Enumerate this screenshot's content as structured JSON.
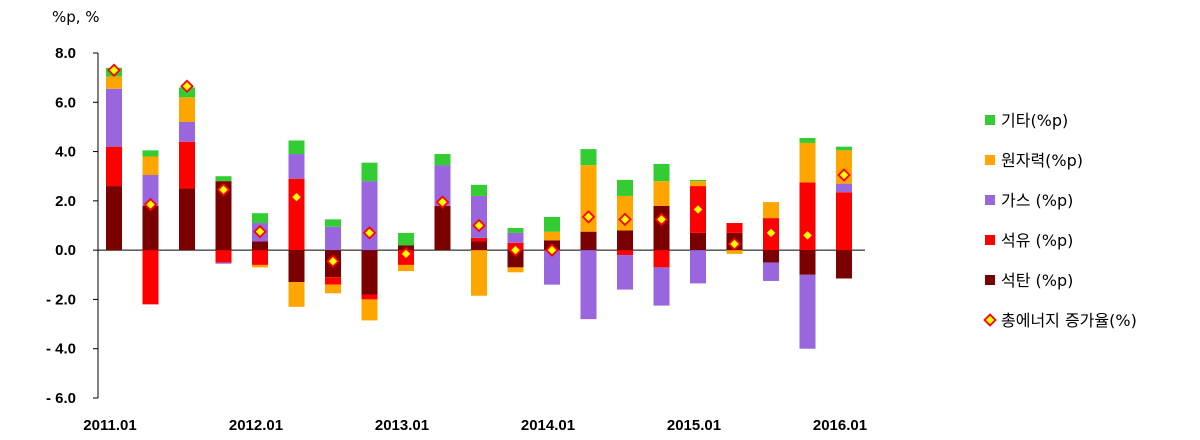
{
  "chart_data": {
    "type": "bar",
    "stacked": true,
    "unit_label": "%p, %",
    "ylim": [
      -6.0,
      8.0
    ],
    "y_ticks": [
      "8.0",
      "6.0",
      "4.0",
      "2.0",
      "0.0",
      "- 2.0",
      "- 4.0",
      "- 6.0"
    ],
    "y_tick_values": [
      8,
      6,
      4,
      2,
      0,
      -2,
      -4,
      -6
    ],
    "x_tick_labels": [
      {
        "label": "2011.01",
        "index": 0
      },
      {
        "label": "2012.01",
        "index": 4
      },
      {
        "label": "2013.01",
        "index": 8
      },
      {
        "label": "2014.01",
        "index": 12
      },
      {
        "label": "2015.01",
        "index": 16
      },
      {
        "label": "2016.01",
        "index": 20
      }
    ],
    "n_periods": 21,
    "series": [
      {
        "name": "석탄 (%p)",
        "color": "#7b0000",
        "values": [
          2.6,
          1.8,
          2.5,
          2.8,
          0.35,
          -1.3,
          -1.1,
          -1.8,
          0.2,
          1.8,
          0.35,
          -0.7,
          0.4,
          0.75,
          0.8,
          1.8,
          0.7,
          0.7,
          -0.5,
          -1.0,
          -1.15
        ]
      },
      {
        "name": "석유 (%p)",
        "color": "#ff0000",
        "values": [
          1.6,
          -2.2,
          1.9,
          -0.5,
          -0.6,
          2.9,
          -0.3,
          -0.2,
          -0.6,
          0.0,
          0.15,
          0.3,
          0.0,
          0.0,
          -0.2,
          -0.7,
          1.9,
          0.4,
          1.3,
          2.75,
          2.35
        ]
      },
      {
        "name": "가스 (%p)",
        "color": "#9966dd",
        "values": [
          2.35,
          1.25,
          0.8,
          -0.05,
          0.75,
          1.0,
          0.95,
          2.8,
          0.0,
          1.65,
          1.7,
          0.4,
          -1.4,
          -2.8,
          -1.4,
          -1.55,
          -1.35,
          0.0,
          -0.75,
          -3.0,
          0.35
        ]
      },
      {
        "name": "원자력(%p)",
        "color": "#ffa500",
        "values": [
          0.5,
          0.75,
          1.0,
          0.0,
          -0.1,
          -1.0,
          -0.35,
          -0.85,
          -0.25,
          0.0,
          -1.85,
          -0.2,
          0.35,
          2.7,
          1.4,
          1.0,
          0.2,
          -0.15,
          0.65,
          1.6,
          1.35
        ]
      },
      {
        "name": "기타(%p)",
        "color": "#33cc33",
        "values": [
          0.35,
          0.25,
          0.4,
          0.2,
          0.4,
          0.55,
          0.3,
          0.75,
          0.5,
          0.45,
          0.45,
          0.2,
          0.6,
          0.65,
          0.65,
          0.7,
          0.05,
          0.0,
          0.0,
          0.2,
          0.15
        ]
      }
    ],
    "total": {
      "name": "총에너지 증가율(%)",
      "values": [
        7.3,
        1.85,
        6.65,
        2.45,
        0.75,
        2.15,
        -0.45,
        0.7,
        -0.15,
        1.95,
        1.0,
        0.0,
        0.0,
        1.35,
        1.25,
        1.25,
        1.65,
        0.25,
        0.7,
        0.6,
        3.05
      ]
    },
    "legend_order": [
      "기타(%p)",
      "원자력(%p)",
      "가스 (%p)",
      "석유 (%p)",
      "석탄 (%p)",
      "총에너지 증가율(%)"
    ],
    "legend_position": "right"
  }
}
